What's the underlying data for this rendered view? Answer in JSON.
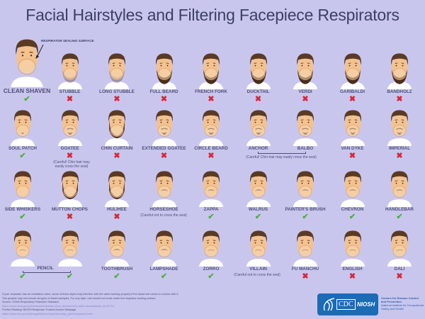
{
  "title": "Facial Hairstyles and Filtering Facepiece Respirators",
  "seal_label": "RESPIRATOR SEALING SURFACE",
  "clean_shaven": {
    "label": "CLEAN SHAVEN",
    "ok": true
  },
  "colors": {
    "ok": "#4caf3a",
    "no": "#d8263c",
    "background": "#c9c6ee",
    "hair": "#5a3a22",
    "skin": "#f4c28e"
  },
  "rows": [
    [
      {
        "label": "STUBBLE",
        "ok": false,
        "beard": "stubble"
      },
      {
        "label": "LONG STUBBLE",
        "ok": false,
        "beard": "stubble"
      },
      {
        "label": "FULL BEARD",
        "ok": false,
        "beard": "full"
      },
      {
        "label": "FRENCH FORK",
        "ok": false,
        "beard": "full"
      },
      {
        "label": "DUCKTAIL",
        "ok": false,
        "beard": "full"
      },
      {
        "label": "VERDI",
        "ok": false,
        "beard": "full"
      },
      {
        "label": "GARIBALDI",
        "ok": false,
        "beard": "full"
      },
      {
        "label": "BANDHOLZ",
        "ok": false,
        "beard": "full"
      }
    ],
    [
      {
        "label": "SOUL PATCH",
        "ok": true,
        "beard": "patch"
      },
      {
        "label": "GOATEE",
        "ok": false,
        "beard": "goatee"
      },
      {
        "label": "CHIN CURTAIN",
        "ok": false,
        "beard": "curtain"
      },
      {
        "label": "EXTENDED GOATEE",
        "ok": false,
        "beard": "goatee"
      },
      {
        "label": "CIRCLE BEARD",
        "ok": false,
        "beard": "goatee"
      },
      {
        "label": "ANCHOR",
        "ok": null,
        "beard": "goatee"
      },
      {
        "label": "BALBO",
        "ok": null,
        "beard": "goatee"
      },
      {
        "label": "VAN DYKE",
        "ok": false,
        "beard": "goatee"
      },
      {
        "label": "IMPERIAL",
        "ok": false,
        "beard": "goatee"
      }
    ],
    [
      {
        "label": "SIDE WHISKERS",
        "ok": true,
        "beard": "none"
      },
      {
        "label": "MUTTON CHOPS",
        "ok": false,
        "beard": "curtain"
      },
      {
        "label": "HULIHEE",
        "ok": false,
        "beard": "curtain"
      },
      {
        "label": "HORSESHOE",
        "ok": null,
        "beard": "mustache"
      },
      {
        "label": "ZAPPA",
        "ok": true,
        "beard": "mustache"
      },
      {
        "label": "WALRUS",
        "ok": true,
        "beard": "mustache"
      },
      {
        "label": "PAINTER'S BRUSH",
        "ok": true,
        "beard": "mustache"
      },
      {
        "label": "CHEVRON",
        "ok": true,
        "beard": "mustache"
      },
      {
        "label": "HANDLEBAR",
        "ok": true,
        "beard": "mustache"
      }
    ],
    [
      {
        "label": "",
        "ok": true,
        "beard": "thin"
      },
      {
        "label": "",
        "ok": true,
        "beard": "thin"
      },
      {
        "label": "TOOTHBRUSH",
        "ok": true,
        "beard": "mustache"
      },
      {
        "label": "LAMPSHADE",
        "ok": true,
        "beard": "mustache"
      },
      {
        "label": "ZORRO",
        "ok": true,
        "beard": "thin"
      },
      {
        "label": "VILLAIN",
        "ok": null,
        "beard": "thin"
      },
      {
        "label": "FU MANCHU",
        "ok": false,
        "beard": "thin"
      },
      {
        "label": "ENGLISH",
        "ok": false,
        "beard": "thin"
      },
      {
        "label": "DALI",
        "ok": false,
        "beard": "thin"
      }
    ]
  ],
  "notes": {
    "goatee_1": "(Careful! Chin hair may",
    "goatee_2": "easily cross the seal)",
    "anchor_balbo": "(Careful! Chin hair may easily cross the seal)",
    "horseshoe": "(Careful not to cross the seal)",
    "pencil": "PENCIL",
    "villain": "(Careful not to cross the seal)"
  },
  "footer": {
    "line1": "If your respirator has an exhalation valve, some of these styles may interfere with the valve working properly if the facial hair comes in contact with it.",
    "line2": "This graphic may not include all types of facial hairstyles. For any style, hair should not cross under the respirator sealing surface.",
    "source": "Source: OSHA Respiratory Protection Standard",
    "source_link": "https://www.osha.gov/pls/oshaweb/owadisp.show_document?p_table=standards&p_id=12716",
    "further": "Further Reading: NIOSH Respirator Trusted-Source Webpage",
    "further_link": "https://www.cdc.gov/niosh/npptl/topics/respirators/disp_part/respsource.html"
  },
  "logo": {
    "cdc": "CDC",
    "niosh": "NIOSH",
    "org1": "Centers for Disease Control",
    "org2": "and Prevention",
    "org3": "National Institute for Occupational",
    "org4": "Safety and Health"
  }
}
